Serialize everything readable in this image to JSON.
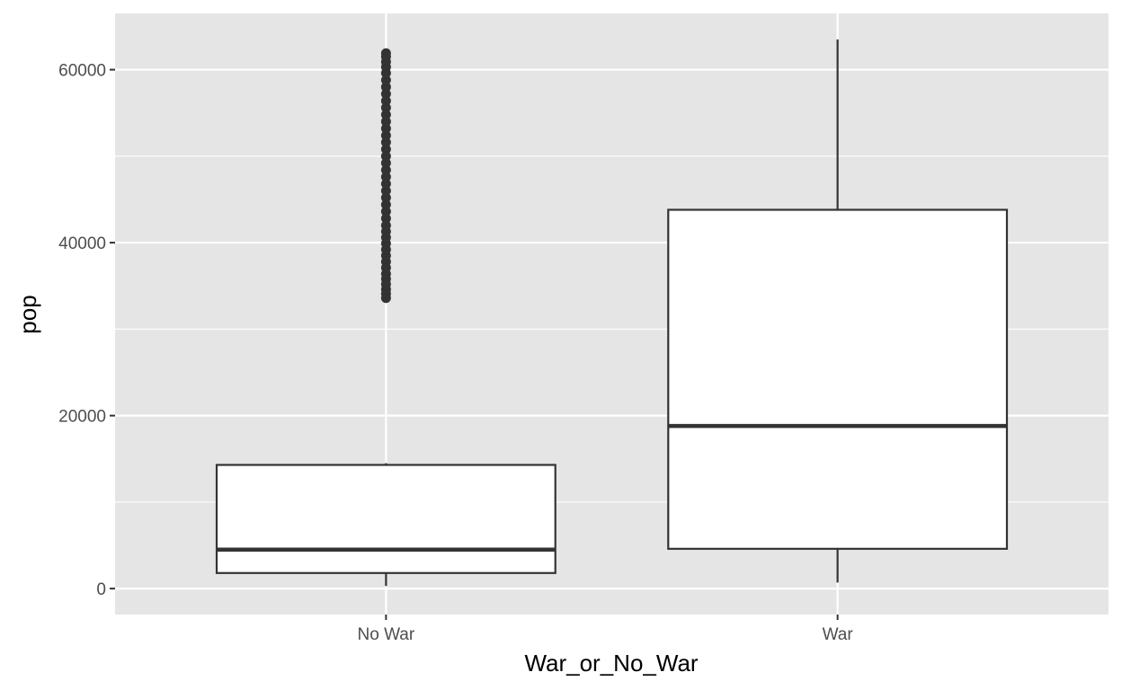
{
  "chart_data": {
    "type": "boxplot",
    "title": "",
    "xlabel": "War_or_No_War",
    "ylabel": "pop",
    "ylim": [
      -3000,
      66500
    ],
    "y_ticks": [
      0,
      20000,
      40000,
      60000
    ],
    "y_tick_labels": [
      "0",
      "20000",
      "40000",
      "60000"
    ],
    "y_minor_ticks": [
      10000,
      30000,
      50000
    ],
    "grid": true,
    "panel_background": "#e5e5e5",
    "grid_color": "#ffffff",
    "box_fill": "#ffffff",
    "box_line_color": "#333333",
    "categories": [
      "No War",
      "War"
    ],
    "boxes": [
      {
        "category": "No War",
        "whisker_low": 300,
        "q1": 1800,
        "median": 4500,
        "q3": 14300,
        "whisker_high": 14500,
        "outliers": [
          33600,
          34100,
          34600,
          35200,
          35800,
          36400,
          37100,
          37800,
          38500,
          39200,
          39900,
          40600,
          41300,
          42000,
          42800,
          43600,
          44400,
          45200,
          46000,
          46800,
          47600,
          48400,
          49200,
          50000,
          50800,
          51600,
          52400,
          53200,
          54000,
          54800,
          55600,
          56400,
          57200,
          58000,
          58800,
          59600,
          60300,
          60900,
          61500,
          61900
        ]
      },
      {
        "category": "War",
        "whisker_low": 700,
        "q1": 4600,
        "median": 18800,
        "q3": 43800,
        "whisker_high": 63500,
        "outliers": []
      }
    ]
  }
}
